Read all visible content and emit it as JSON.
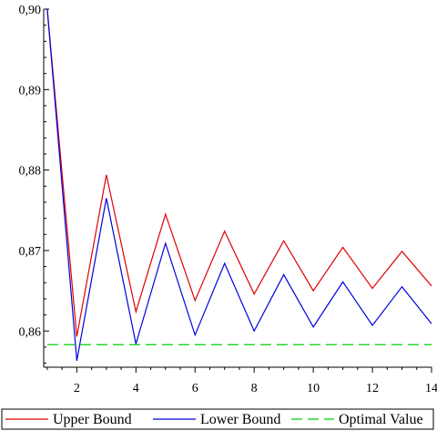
{
  "chart_data": {
    "type": "line",
    "x": [
      1,
      2,
      3,
      4,
      5,
      6,
      7,
      8,
      9,
      10,
      11,
      12,
      13,
      14
    ],
    "series": [
      {
        "name": "Upper Bound",
        "color": "#e00000",
        "dash": "solid",
        "values": [
          0.9,
          0.8593,
          0.8794,
          0.8624,
          0.8745,
          0.8638,
          0.8724,
          0.8646,
          0.8712,
          0.865,
          0.8704,
          0.8653,
          0.8699,
          0.8656
        ]
      },
      {
        "name": "Lower Bound",
        "color": "#0000e0",
        "dash": "solid",
        "values": [
          0.9,
          0.8563,
          0.8765,
          0.8584,
          0.8709,
          0.8595,
          0.8684,
          0.86,
          0.867,
          0.8605,
          0.8661,
          0.8607,
          0.8655,
          0.8609
        ]
      },
      {
        "name": "Optimal Value",
        "color": "#00d000",
        "dash": "dashed",
        "values": [
          0.8583,
          0.8583,
          0.8583,
          0.8583,
          0.8583,
          0.8583,
          0.8583,
          0.8583,
          0.8583,
          0.8583,
          0.8583,
          0.8583,
          0.8583,
          0.8583
        ]
      }
    ],
    "xlim": [
      0.88,
      14
    ],
    "ylim": [
      0.8555,
      0.9
    ],
    "x_ticks": [
      2,
      4,
      6,
      8,
      10,
      12,
      14
    ],
    "x_tick_labels": [
      "2",
      "4",
      "6",
      "8",
      "10",
      "12",
      "14"
    ],
    "y_ticks": [
      0.86,
      0.87,
      0.88,
      0.89,
      0.9
    ],
    "y_tick_labels": [
      "0,86",
      "0,87",
      "0,88",
      "0,89",
      "0,90"
    ],
    "title": "",
    "xlabel": "",
    "ylabel": "",
    "grid": false,
    "legend_placement": "bottom"
  }
}
